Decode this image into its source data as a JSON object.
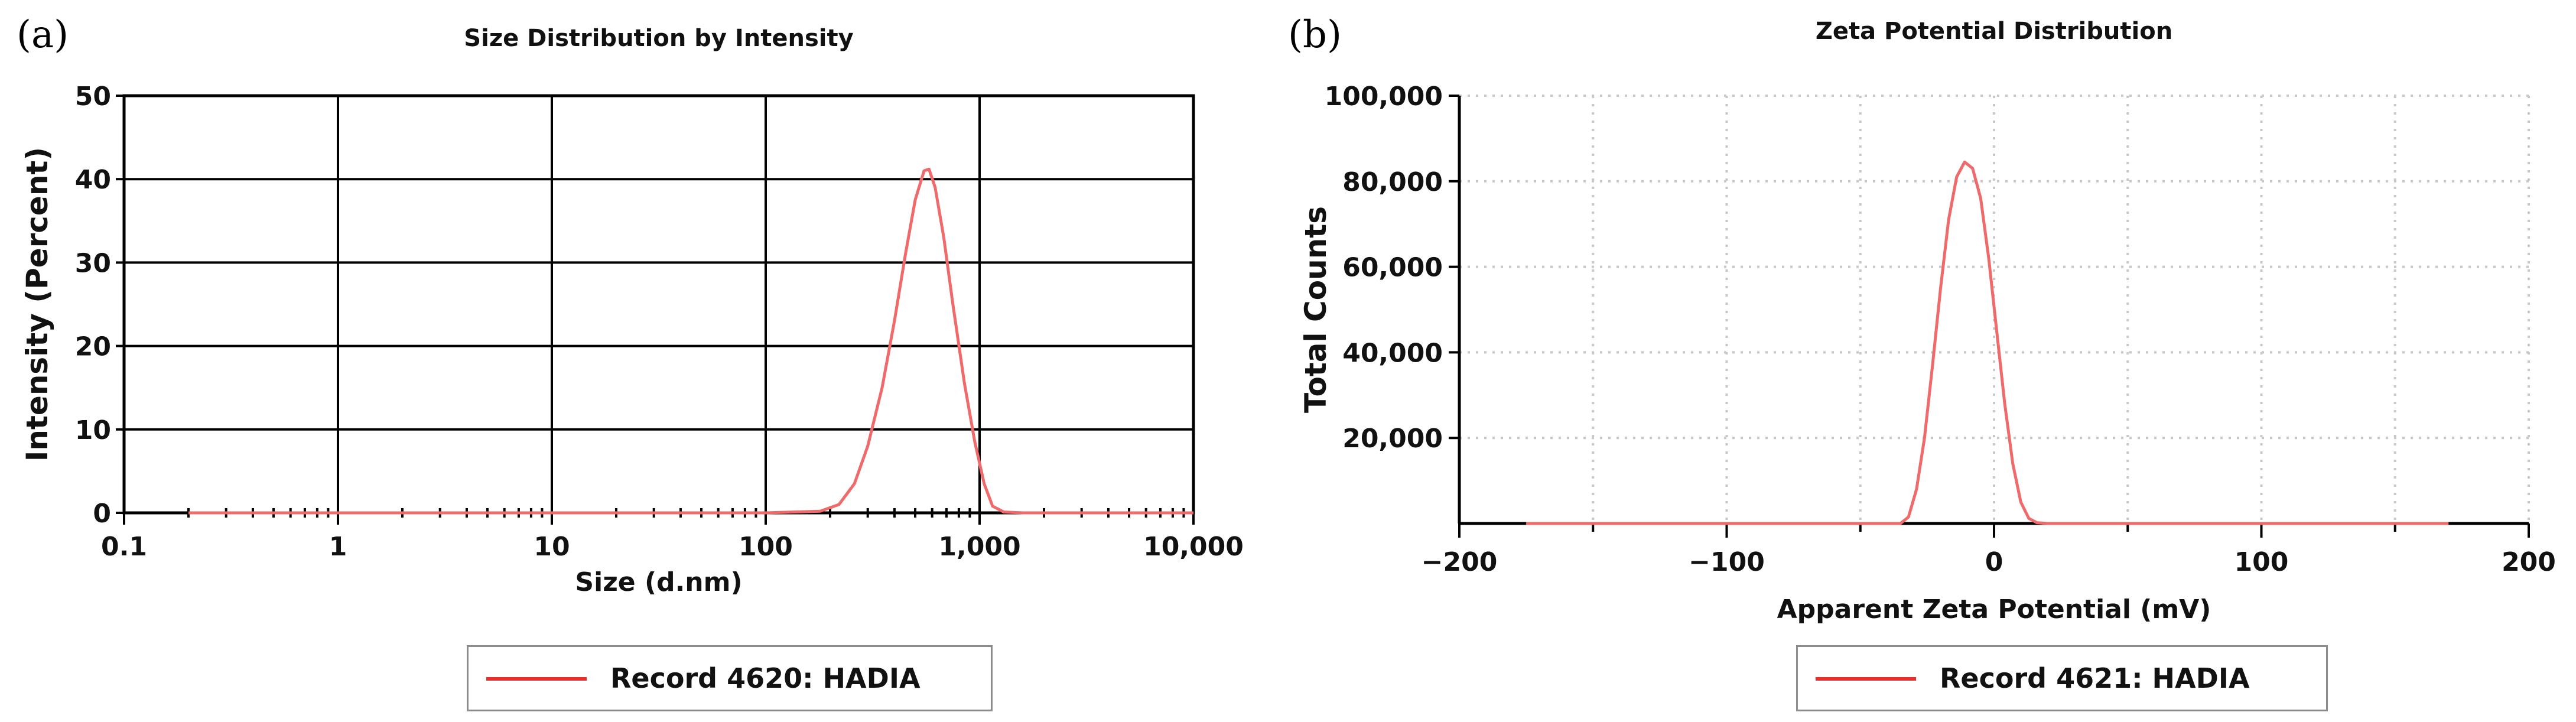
{
  "chart_data": [
    {
      "panel_label": "(a)",
      "type": "line",
      "title": "Size Distribution by Intensity",
      "xlabel": "Size (d.nm)",
      "ylabel": "Intensity (Percent)",
      "x_scale": "log",
      "xlim": [
        0.1,
        10000
      ],
      "ylim": [
        0,
        50
      ],
      "x_ticks": [
        0.1,
        1,
        10,
        100,
        1000,
        10000
      ],
      "x_tick_labels": [
        "0.1",
        "1",
        "10",
        "100",
        "1,000",
        "10,000"
      ],
      "y_ticks": [
        0,
        10,
        20,
        30,
        40,
        50
      ],
      "y_tick_labels": [
        "0",
        "10",
        "20",
        "30",
        "40",
        "50"
      ],
      "grid": "solid",
      "colors": {
        "series": "#ef6b6b",
        "grid": "#000000"
      },
      "legend": {
        "position": "bottom",
        "entries": [
          "Record 4620: HADIA"
        ]
      },
      "series": [
        {
          "name": "Record 4620: HADIA",
          "x": [
            0.2,
            100,
            180,
            220,
            260,
            300,
            350,
            400,
            450,
            500,
            550,
            580,
            620,
            680,
            750,
            850,
            950,
            1050,
            1150,
            1300,
            1600,
            2000,
            10000
          ],
          "y": [
            0,
            0,
            0.2,
            1,
            3.5,
            8,
            15,
            23,
            31,
            37.5,
            41,
            41.2,
            39,
            33,
            25,
            15.5,
            8.5,
            3.5,
            0.8,
            0.1,
            0,
            0,
            0
          ]
        }
      ]
    },
    {
      "panel_label": "(b)",
      "type": "line",
      "title": "Zeta Potential Distribution",
      "xlabel": "Apparent Zeta Potential (mV)",
      "ylabel": "Total Counts",
      "xlim": [
        -200,
        200
      ],
      "ylim": [
        0,
        100000
      ],
      "x_ticks": [
        -200,
        -100,
        0,
        100,
        200
      ],
      "x_tick_labels": [
        "−200",
        "−100",
        "0",
        "100",
        "200"
      ],
      "y_ticks": [
        20000,
        40000,
        60000,
        80000,
        100000
      ],
      "y_tick_labels": [
        "20,000",
        "40,000",
        "60,000",
        "80,000",
        "100,000"
      ],
      "grid": "dotted",
      "colors": {
        "series": "#ef6b6b",
        "grid": "#c8c8c8"
      },
      "legend": {
        "position": "bottom",
        "entries": [
          "Record 4621: HADIA"
        ]
      },
      "series": [
        {
          "name": "Record 4621: HADIA",
          "x": [
            -175,
            -40,
            -35,
            -32,
            -29,
            -26,
            -23,
            -20,
            -17,
            -14,
            -11,
            -8,
            -5,
            -2,
            1,
            4,
            7,
            10,
            13,
            16,
            20,
            30,
            170
          ],
          "y": [
            0,
            0,
            0,
            1500,
            8000,
            20000,
            37000,
            55000,
            71000,
            81000,
            84500,
            83000,
            76000,
            62000,
            45000,
            28000,
            14000,
            5000,
            1200,
            200,
            0,
            0,
            0
          ]
        }
      ]
    }
  ]
}
